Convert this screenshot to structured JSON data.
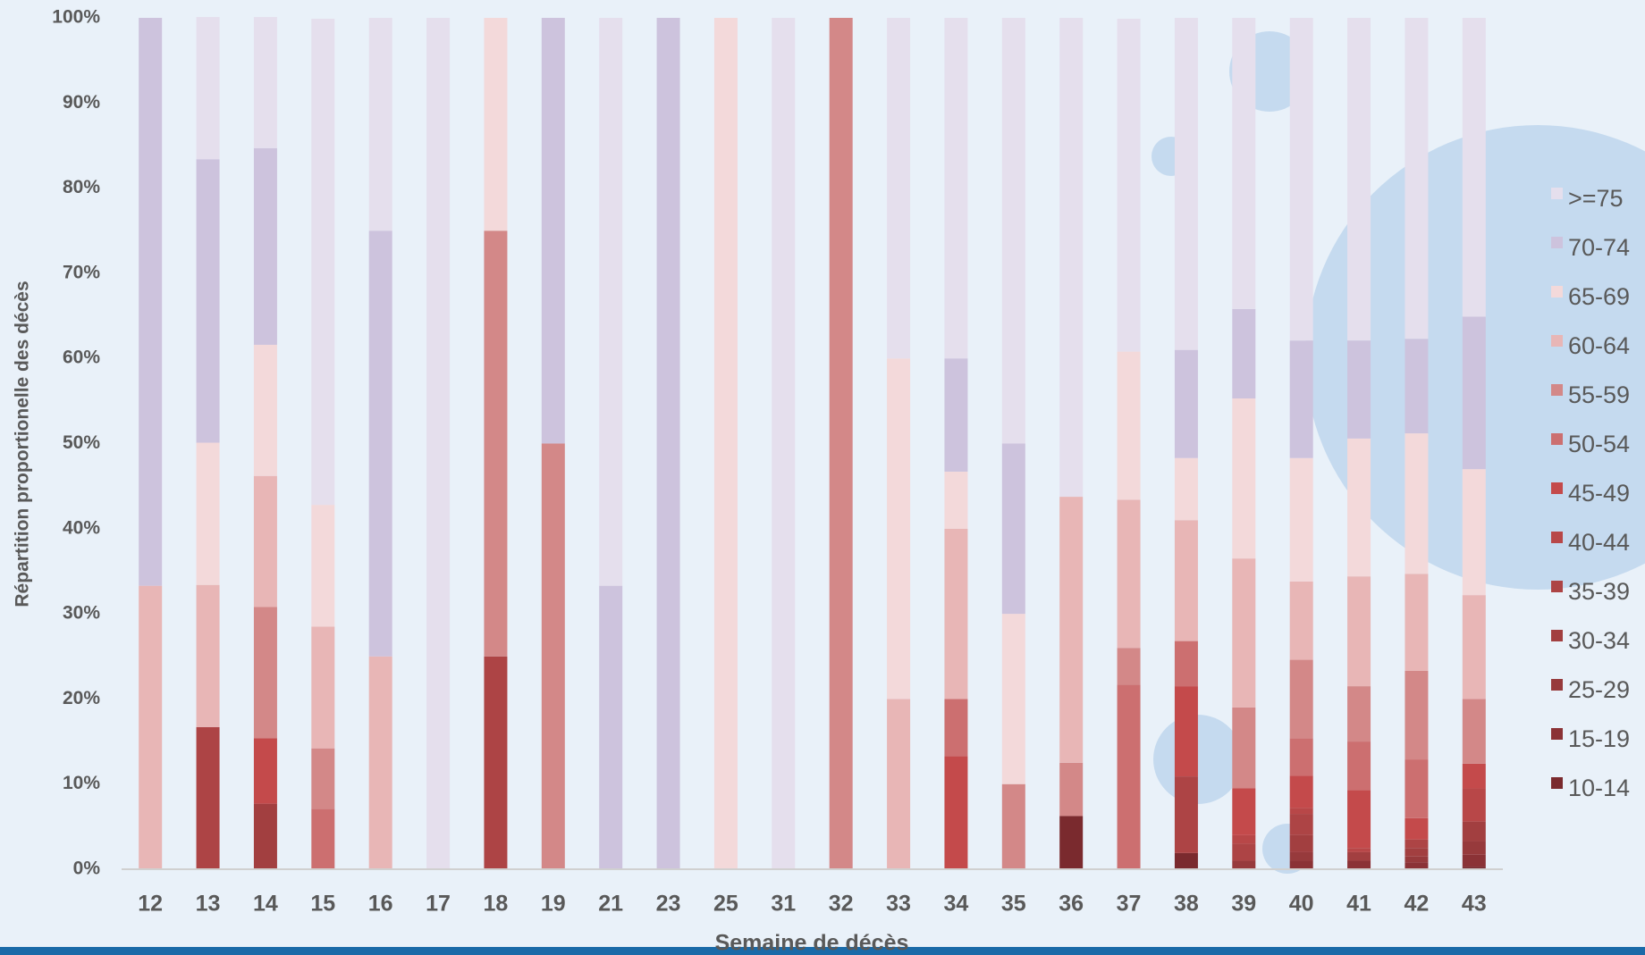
{
  "chart_data": {
    "type": "stacked_bar",
    "y_label": "Répartition proportionelle des décès",
    "x_label": "Semaine de décès",
    "categories": [
      "12",
      "13",
      "14",
      "15",
      "16",
      "17",
      "18",
      "19",
      "21",
      "23",
      "25",
      "31",
      "32",
      "33",
      "34",
      "35",
      "36",
      "37",
      "38",
      "39",
      "40",
      "41",
      "42",
      "43"
    ],
    "ylim": [
      0,
      100
    ],
    "yticks": [
      {
        "value": 0,
        "label": "0%"
      },
      {
        "value": 10,
        "label": "10%"
      },
      {
        "value": 20,
        "label": "20%"
      },
      {
        "value": 30,
        "label": "30%"
      },
      {
        "value": 40,
        "label": "40%"
      },
      {
        "value": 50,
        "label": "50%"
      },
      {
        "value": 60,
        "label": "60%"
      },
      {
        "value": 70,
        "label": "70%"
      },
      {
        "value": 80,
        "label": "80%"
      },
      {
        "value": 90,
        "label": "90%"
      },
      {
        "value": 100,
        "label": "100%"
      }
    ],
    "legend": "right",
    "series": [
      {
        "name": "10-14",
        "color": "#7a2a2e",
        "values": [
          0,
          0,
          0,
          0,
          0,
          0,
          0,
          0,
          0,
          0,
          0,
          0,
          0,
          0,
          0,
          0,
          6.25,
          0,
          1.9,
          0,
          0,
          0,
          0,
          0.3
        ]
      },
      {
        "name": "15-19",
        "color": "#8b3236",
        "values": [
          0,
          0,
          0,
          0,
          0,
          0,
          0,
          0,
          0,
          0,
          0,
          0,
          0,
          0,
          0,
          0,
          0,
          0,
          0,
          0,
          1,
          1,
          0.8,
          1.4
        ]
      },
      {
        "name": "25-29",
        "color": "#973a3c",
        "values": [
          0,
          0,
          0,
          0,
          0,
          0,
          0,
          0,
          0,
          0,
          0,
          0,
          0,
          0,
          0,
          0,
          0,
          0,
          0,
          1,
          1,
          0,
          0.7,
          1.6
        ]
      },
      {
        "name": "30-34",
        "color": "#a23f40",
        "values": [
          0,
          0,
          7.7,
          0,
          0,
          0,
          0,
          0,
          0,
          0,
          0,
          0,
          0,
          0,
          0,
          0,
          0,
          0,
          0,
          0,
          2,
          1,
          1,
          2.3
        ]
      },
      {
        "name": "35-39",
        "color": "#ad4445",
        "values": [
          0,
          16.7,
          0,
          0,
          0,
          0,
          25,
          0,
          0,
          0,
          0,
          0,
          0,
          0,
          0,
          0,
          0,
          0,
          9,
          2,
          2.5,
          0,
          1,
          0
        ]
      },
      {
        "name": "40-44",
        "color": "#b84748",
        "values": [
          0,
          0,
          0,
          0,
          0,
          0,
          0,
          0,
          0,
          0,
          0,
          0,
          0,
          0,
          0,
          0,
          0,
          0,
          0,
          1,
          0.7,
          0.5,
          0,
          3.9
        ]
      },
      {
        "name": "45-49",
        "color": "#c44a4b",
        "values": [
          0,
          0,
          7.7,
          0,
          0,
          0,
          0,
          0,
          0,
          0,
          0,
          0,
          0,
          0,
          13.3,
          0,
          0,
          0,
          10.6,
          5.5,
          3.8,
          6.8,
          2.5,
          2.9
        ]
      },
      {
        "name": "50-54",
        "color": "#cc6f70",
        "values": [
          0,
          0,
          0,
          7.1,
          0,
          0,
          0,
          0,
          0,
          0,
          0,
          0,
          0,
          0,
          6.7,
          0,
          0,
          21.7,
          5.3,
          0,
          4.4,
          5.7,
          6.9,
          0
        ]
      },
      {
        "name": "55-59",
        "color": "#d38888",
        "values": [
          0,
          0,
          15.4,
          7.1,
          0,
          0,
          50,
          50,
          0,
          0,
          0,
          0,
          100,
          0,
          0,
          10,
          6.25,
          4.3,
          0,
          9.5,
          9.2,
          6.5,
          10.4,
          7.6
        ]
      },
      {
        "name": "60-64",
        "color": "#e8b6b6",
        "values": [
          33.3,
          16.7,
          15.4,
          14.3,
          25,
          0,
          0,
          0,
          0,
          0,
          0,
          0,
          0,
          20,
          20,
          0,
          31.25,
          17.4,
          14.2,
          17.5,
          9.2,
          12.9,
          11.4,
          12.2
        ]
      },
      {
        "name": "65-69",
        "color": "#f3d9da",
        "values": [
          0,
          16.7,
          15.4,
          14.3,
          0,
          0,
          25,
          0,
          0,
          0,
          100,
          0,
          0,
          40,
          6.7,
          20,
          0,
          17.4,
          7.3,
          18.8,
          14.5,
          16.2,
          16.5,
          14.8
        ]
      },
      {
        "name": "70-74",
        "color": "#cdc3dd",
        "values": [
          66.7,
          33.3,
          23.1,
          0,
          50,
          0,
          0,
          50,
          33.3,
          100,
          0,
          0,
          0,
          0,
          13.3,
          20,
          0,
          0,
          12.7,
          10.5,
          13.8,
          11.5,
          11.1,
          17.9
        ]
      },
      {
        "name": ">=75",
        "color": "#e5dfed",
        "values": [
          0,
          16.7,
          15.4,
          57.1,
          25,
          100,
          0,
          0,
          66.7,
          0,
          0,
          100,
          0,
          40,
          40,
          50,
          56.25,
          39.1,
          39,
          34.2,
          37.9,
          37.9,
          37.7,
          35.1
        ]
      }
    ]
  }
}
